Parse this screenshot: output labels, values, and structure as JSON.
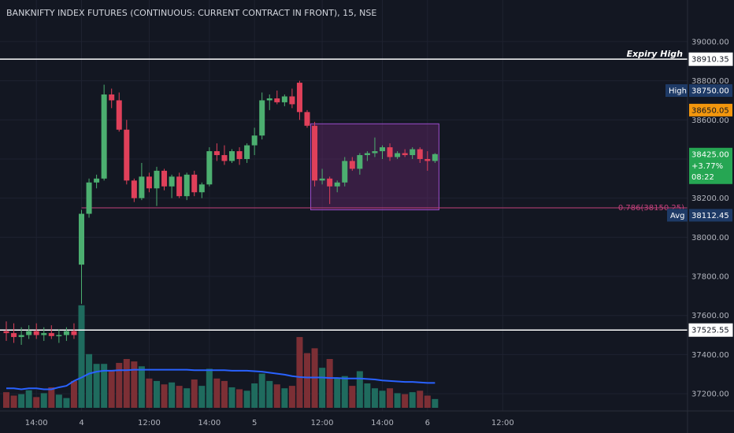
{
  "header": {
    "title": "BANKNIFTY INDEX FUTURES (CONTINUOUS: CURRENT CONTRACT IN FRONT), 15, NSE"
  },
  "colors": {
    "up": "#4caf70",
    "down": "#e0405a",
    "vol_up": "#1f6b5e",
    "vol_down": "#7c2f35",
    "vol_ma": "#2962ff",
    "box_fill": "#7b2a7d",
    "box_stroke": "#9c4dcc",
    "fib": "#c2407a",
    "white_line": "#ffffff",
    "high_tag": "#1e3a66",
    "orange_tag": "#f2960d",
    "green_tag": "#26a653",
    "avg_tag": "#1e3a66"
  },
  "chart_data": {
    "type": "candlestick",
    "title": "BANKNIFTY INDEX FUTURES (CONTINUOUS: CURRENT CONTRACT IN FRONT), 15, NSE",
    "interval": "15",
    "exchange": "NSE",
    "ylim": [
      37120,
      39060
    ],
    "y_ticks": [
      37200,
      37400,
      37600,
      37800,
      38000,
      38200,
      38400,
      38600,
      38800,
      39000
    ],
    "y_tick_labels": [
      "37200.00",
      "37400.00",
      "37600.00",
      "37800.00",
      "38000.00",
      "38200.00",
      "38400.00",
      "38600.00",
      "38800.00",
      "39000.00"
    ],
    "x_labels": [
      {
        "index": 4,
        "text": "14:00"
      },
      {
        "index": 10,
        "text": "4"
      },
      {
        "index": 19,
        "text": "12:00"
      },
      {
        "index": 27,
        "text": "14:00"
      },
      {
        "index": 33,
        "text": "5"
      },
      {
        "index": 42,
        "text": "12:00"
      },
      {
        "index": 50,
        "text": "14:00"
      },
      {
        "index": 56,
        "text": "6"
      },
      {
        "index": 66,
        "text": "12:00"
      }
    ],
    "candles": [
      {
        "o": 37520,
        "h": 37570,
        "l": 37470,
        "c": 37510,
        "v": 32
      },
      {
        "o": 37510,
        "h": 37560,
        "l": 37460,
        "c": 37490,
        "v": 25
      },
      {
        "o": 37490,
        "h": 37540,
        "l": 37450,
        "c": 37500,
        "v": 28
      },
      {
        "o": 37500,
        "h": 37550,
        "l": 37480,
        "c": 37520,
        "v": 36
      },
      {
        "o": 37520,
        "h": 37560,
        "l": 37480,
        "c": 37500,
        "v": 22
      },
      {
        "o": 37500,
        "h": 37540,
        "l": 37470,
        "c": 37510,
        "v": 30
      },
      {
        "o": 37510,
        "h": 37550,
        "l": 37480,
        "c": 37495,
        "v": 42
      },
      {
        "o": 37495,
        "h": 37530,
        "l": 37460,
        "c": 37500,
        "v": 27
      },
      {
        "o": 37500,
        "h": 37540,
        "l": 37470,
        "c": 37520,
        "v": 20
      },
      {
        "o": 37520,
        "h": 37560,
        "l": 37480,
        "c": 37500,
        "v": 55
      },
      {
        "o": 37860,
        "h": 38140,
        "l": 37660,
        "c": 38120,
        "v": 210
      },
      {
        "o": 38120,
        "h": 38300,
        "l": 38100,
        "c": 38280,
        "v": 110
      },
      {
        "o": 38280,
        "h": 38320,
        "l": 38250,
        "c": 38300,
        "v": 90
      },
      {
        "o": 38300,
        "h": 38780,
        "l": 38290,
        "c": 38730,
        "v": 90
      },
      {
        "o": 38730,
        "h": 38760,
        "l": 38660,
        "c": 38700,
        "v": 75
      },
      {
        "o": 38700,
        "h": 38740,
        "l": 38540,
        "c": 38550,
        "v": 92
      },
      {
        "o": 38550,
        "h": 38600,
        "l": 38270,
        "c": 38290,
        "v": 100
      },
      {
        "o": 38290,
        "h": 38300,
        "l": 38180,
        "c": 38200,
        "v": 95
      },
      {
        "o": 38200,
        "h": 38380,
        "l": 38190,
        "c": 38310,
        "v": 85
      },
      {
        "o": 38310,
        "h": 38330,
        "l": 38230,
        "c": 38250,
        "v": 60
      },
      {
        "o": 38250,
        "h": 38360,
        "l": 38160,
        "c": 38340,
        "v": 55
      },
      {
        "o": 38340,
        "h": 38350,
        "l": 38240,
        "c": 38260,
        "v": 48
      },
      {
        "o": 38260,
        "h": 38320,
        "l": 38200,
        "c": 38310,
        "v": 52
      },
      {
        "o": 38310,
        "h": 38330,
        "l": 38200,
        "c": 38210,
        "v": 45
      },
      {
        "o": 38210,
        "h": 38330,
        "l": 38190,
        "c": 38320,
        "v": 40
      },
      {
        "o": 38320,
        "h": 38340,
        "l": 38210,
        "c": 38230,
        "v": 58
      },
      {
        "o": 38230,
        "h": 38280,
        "l": 38200,
        "c": 38270,
        "v": 45
      },
      {
        "o": 38270,
        "h": 38460,
        "l": 38260,
        "c": 38440,
        "v": 80
      },
      {
        "o": 38440,
        "h": 38480,
        "l": 38390,
        "c": 38420,
        "v": 60
      },
      {
        "o": 38420,
        "h": 38470,
        "l": 38370,
        "c": 38390,
        "v": 55
      },
      {
        "o": 38390,
        "h": 38450,
        "l": 38380,
        "c": 38440,
        "v": 42
      },
      {
        "o": 38440,
        "h": 38460,
        "l": 38370,
        "c": 38400,
        "v": 38
      },
      {
        "o": 38400,
        "h": 38480,
        "l": 38380,
        "c": 38470,
        "v": 35
      },
      {
        "o": 38470,
        "h": 38560,
        "l": 38420,
        "c": 38520,
        "v": 50
      },
      {
        "o": 38520,
        "h": 38740,
        "l": 38500,
        "c": 38700,
        "v": 70
      },
      {
        "o": 38700,
        "h": 38730,
        "l": 38650,
        "c": 38710,
        "v": 55
      },
      {
        "o": 38710,
        "h": 38750,
        "l": 38680,
        "c": 38690,
        "v": 48
      },
      {
        "o": 38690,
        "h": 38730,
        "l": 38670,
        "c": 38720,
        "v": 40
      },
      {
        "o": 38720,
        "h": 38760,
        "l": 38660,
        "c": 38680,
        "v": 45
      },
      {
        "o": 38790,
        "h": 38800,
        "l": 38600,
        "c": 38640,
        "v": 145
      },
      {
        "o": 38640,
        "h": 38650,
        "l": 38560,
        "c": 38570,
        "v": 112
      },
      {
        "o": 38570,
        "h": 38590,
        "l": 38260,
        "c": 38290,
        "v": 122
      },
      {
        "o": 38290,
        "h": 38350,
        "l": 38270,
        "c": 38300,
        "v": 82
      },
      {
        "o": 38300,
        "h": 38310,
        "l": 38170,
        "c": 38260,
        "v": 100
      },
      {
        "o": 38260,
        "h": 38290,
        "l": 38230,
        "c": 38280,
        "v": 60
      },
      {
        "o": 38280,
        "h": 38410,
        "l": 38260,
        "c": 38390,
        "v": 65
      },
      {
        "o": 38390,
        "h": 38410,
        "l": 38340,
        "c": 38350,
        "v": 45
      },
      {
        "o": 38350,
        "h": 38430,
        "l": 38320,
        "c": 38420,
        "v": 75
      },
      {
        "o": 38420,
        "h": 38440,
        "l": 38390,
        "c": 38430,
        "v": 50
      },
      {
        "o": 38430,
        "h": 38510,
        "l": 38410,
        "c": 38440,
        "v": 40
      },
      {
        "o": 38440,
        "h": 38470,
        "l": 38400,
        "c": 38460,
        "v": 35
      },
      {
        "o": 38460,
        "h": 38480,
        "l": 38390,
        "c": 38410,
        "v": 40
      },
      {
        "o": 38410,
        "h": 38440,
        "l": 38400,
        "c": 38430,
        "v": 30
      },
      {
        "o": 38430,
        "h": 38450,
        "l": 38410,
        "c": 38420,
        "v": 28
      },
      {
        "o": 38420,
        "h": 38460,
        "l": 38400,
        "c": 38450,
        "v": 32
      },
      {
        "o": 38450,
        "h": 38460,
        "l": 38380,
        "c": 38400,
        "v": 35
      },
      {
        "o": 38400,
        "h": 38440,
        "l": 38340,
        "c": 38390,
        "v": 25
      },
      {
        "o": 38390,
        "h": 38430,
        "l": 38380,
        "c": 38425,
        "v": 18
      }
    ],
    "volume_ma": [
      40,
      40,
      38,
      40,
      40,
      38,
      38,
      42,
      45,
      55,
      62,
      70,
      74,
      76,
      76,
      77,
      77,
      78,
      78,
      78,
      78,
      78,
      78,
      78,
      78,
      77,
      77,
      77,
      77,
      77,
      76,
      76,
      76,
      75,
      74,
      72,
      70,
      68,
      65,
      63,
      62,
      62,
      62,
      61,
      61,
      60,
      60,
      60,
      59,
      58,
      56,
      55,
      54,
      53,
      53,
      52,
      51,
      51
    ],
    "white_lines": [
      {
        "price": 38910.35,
        "label": "Expiry High",
        "tag": "38910.35"
      },
      {
        "price": 37525.55,
        "label": "",
        "tag": "37525.55"
      }
    ],
    "box": {
      "start_index": 41,
      "end_index": 49,
      "top": 38580,
      "bottom": 38140
    },
    "fib_line": {
      "price": 38150.25,
      "start_index": 10,
      "label": "0.786(38150.25)"
    },
    "tags": [
      {
        "price": 38750.0,
        "label": "High",
        "text": "38750.00",
        "kind": "high"
      },
      {
        "price": 38650.05,
        "label": "",
        "text": "38650.05",
        "kind": "orange"
      },
      {
        "price": 38425.0,
        "label": "",
        "text": "38425.00",
        "kind": "green",
        "extra": [
          "+3.77%",
          "08:22"
        ]
      },
      {
        "price": 38112.45,
        "label": "Avg",
        "text": "38112.45",
        "kind": "avg"
      }
    ]
  }
}
